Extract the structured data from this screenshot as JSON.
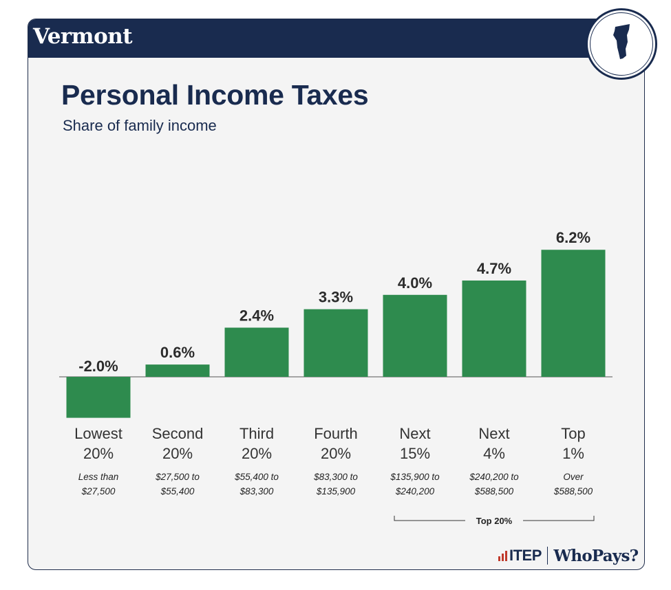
{
  "header": {
    "state": "Vermont",
    "state_icon": "vermont-map-icon",
    "band_color": "#192b4f"
  },
  "title": "Personal Income Taxes",
  "subtitle": "Share of family income",
  "chart_data": {
    "type": "bar",
    "title": "Personal Income Taxes",
    "subtitle": "Share of family income",
    "xlabel": "",
    "ylabel": "",
    "ylim": [
      -2.0,
      6.2
    ],
    "grid": false,
    "bar_color": "#2e8b4e",
    "unit": "%",
    "categories": [
      {
        "line1": "Lowest",
        "line2": "20%",
        "range1": "Less than",
        "range2": "$27,500"
      },
      {
        "line1": "Second",
        "line2": "20%",
        "range1": "$27,500 to",
        "range2": "$55,400"
      },
      {
        "line1": "Third",
        "line2": "20%",
        "range1": "$55,400 to",
        "range2": "$83,300"
      },
      {
        "line1": "Fourth",
        "line2": "20%",
        "range1": "$83,300 to",
        "range2": "$135,900"
      },
      {
        "line1": "Next",
        "line2": "15%",
        "range1": "$135,900 to",
        "range2": "$240,200"
      },
      {
        "line1": "Next",
        "line2": "4%",
        "range1": "$240,200 to",
        "range2": "$588,500"
      },
      {
        "line1": "Top",
        "line2": "1%",
        "range1": "Over",
        "range2": "$588,500"
      }
    ],
    "values": [
      -2.0,
      0.6,
      2.4,
      3.3,
      4.0,
      4.7,
      6.2
    ],
    "value_labels": [
      "-2.0%",
      "0.6%",
      "2.4%",
      "3.3%",
      "4.0%",
      "4.7%",
      "6.2%"
    ],
    "group_bracket": {
      "label": "Top 20%",
      "from_index": 4,
      "to_index": 6
    }
  },
  "footer": {
    "logo_left": "ITEP",
    "logo_right": "WhoPays?"
  }
}
